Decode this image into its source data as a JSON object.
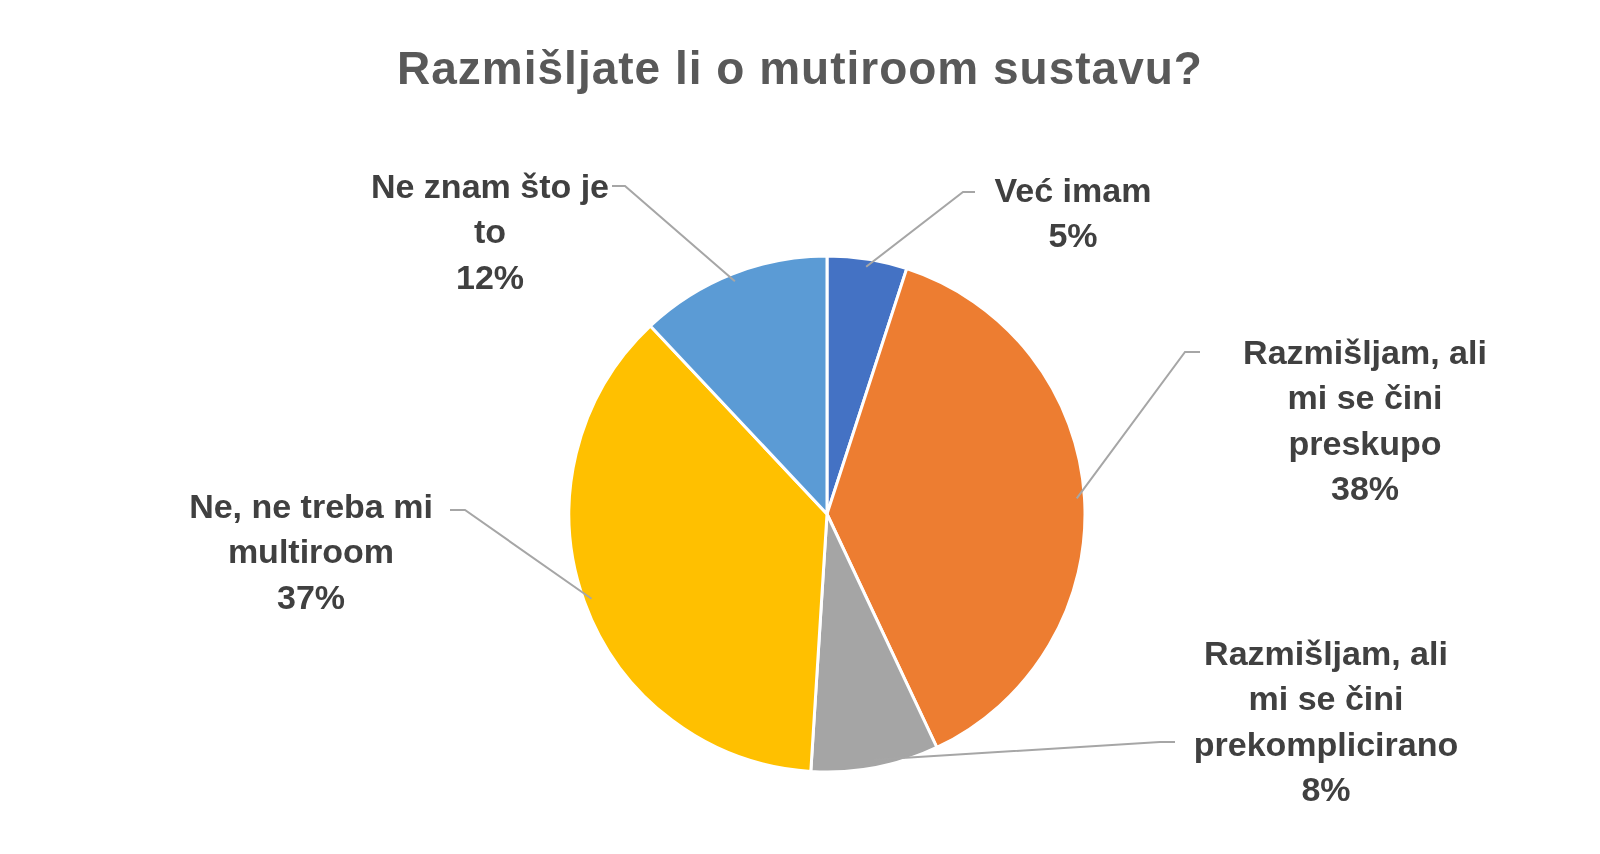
{
  "chart_data": {
    "type": "pie",
    "title": "Razmišljate li o mutiroom sustavu?",
    "categories": [
      "Već imam",
      "Razmišljam, ali mi se čini preskupo",
      "Razmišljam, ali mi se čini prekomplicirano",
      "Ne, ne treba mi multiroom",
      "Ne znam što je to"
    ],
    "values": [
      5,
      38,
      8,
      37,
      12
    ],
    "colors": [
      "#4472c4",
      "#ed7d31",
      "#a5a5a5",
      "#ffc000",
      "#5b9bd5"
    ],
    "value_labels": [
      "5%",
      "38%",
      "8%",
      "37%",
      "12%"
    ]
  }
}
